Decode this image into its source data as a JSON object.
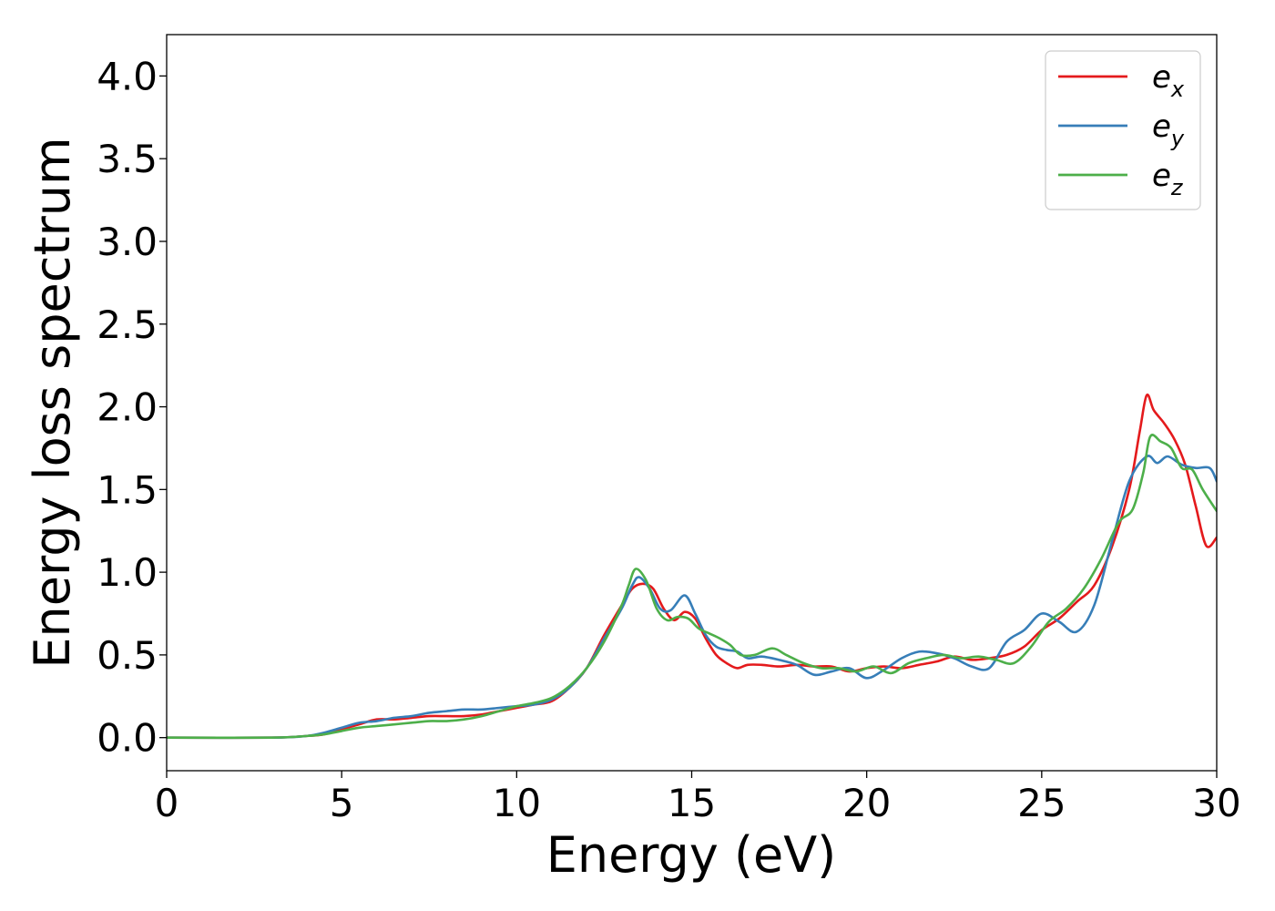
{
  "chart_data": {
    "type": "line",
    "xlabel": "Energy (eV)",
    "ylabel": "Energy loss spectrum",
    "xlim": [
      0,
      30
    ],
    "ylim": [
      -0.2,
      4.25
    ],
    "xticks": [
      0,
      5,
      10,
      15,
      20,
      25,
      30
    ],
    "yticks": [
      0.0,
      0.5,
      1.0,
      1.5,
      2.0,
      2.5,
      3.0,
      3.5,
      4.0
    ],
    "xtick_labels": [
      "0",
      "5",
      "10",
      "15",
      "20",
      "25",
      "30"
    ],
    "ytick_labels": [
      "0.0",
      "0.5",
      "1.0",
      "1.5",
      "2.0",
      "2.5",
      "3.0",
      "3.5",
      "4.0"
    ],
    "grid": false,
    "legend_position": "top-right",
    "series": [
      {
        "name": "e_x",
        "label_base": "e",
        "label_sub": "x",
        "color": "#e41a1c",
        "x": [
          0,
          3,
          4,
          4.5,
          5,
          5.5,
          6,
          6.5,
          7,
          7.5,
          8,
          8.5,
          9,
          9.5,
          10,
          10.5,
          11,
          11.5,
          12,
          12.5,
          13,
          13.3,
          13.6,
          13.9,
          14.2,
          14.5,
          14.8,
          15.1,
          15.4,
          15.7,
          16.0,
          16.3,
          16.6,
          17,
          17.5,
          18,
          18.5,
          19,
          19.5,
          20,
          20.5,
          21,
          21.5,
          22,
          22.5,
          23,
          23.5,
          24,
          24.5,
          25,
          25.5,
          26,
          26.5,
          27,
          27.5,
          27.8,
          28.0,
          28.2,
          28.5,
          28.8,
          29.1,
          29.4,
          29.7,
          30
        ],
        "y": [
          0.0,
          0.0,
          0.01,
          0.02,
          0.05,
          0.08,
          0.11,
          0.11,
          0.12,
          0.13,
          0.13,
          0.13,
          0.14,
          0.16,
          0.18,
          0.2,
          0.22,
          0.3,
          0.42,
          0.62,
          0.8,
          0.9,
          0.93,
          0.9,
          0.78,
          0.71,
          0.76,
          0.72,
          0.6,
          0.5,
          0.45,
          0.42,
          0.44,
          0.44,
          0.43,
          0.44,
          0.43,
          0.43,
          0.4,
          0.42,
          0.43,
          0.42,
          0.44,
          0.46,
          0.49,
          0.47,
          0.48,
          0.5,
          0.55,
          0.65,
          0.72,
          0.82,
          0.92,
          1.15,
          1.5,
          1.85,
          2.07,
          1.98,
          1.9,
          1.8,
          1.65,
          1.4,
          1.16,
          1.21
        ]
      },
      {
        "name": "e_y",
        "label_base": "e",
        "label_sub": "y",
        "color": "#377eb8",
        "x": [
          0,
          3,
          4,
          4.5,
          5,
          5.5,
          6,
          6.5,
          7,
          7.5,
          8,
          8.5,
          9,
          9.5,
          10,
          10.5,
          11,
          11.5,
          12,
          12.5,
          13,
          13.3,
          13.5,
          13.8,
          14.1,
          14.4,
          14.8,
          15.1,
          15.4,
          15.7,
          16.0,
          16.3,
          16.6,
          17,
          17.5,
          18,
          18.5,
          19,
          19.5,
          20,
          20.5,
          21,
          21.5,
          22,
          22.5,
          23,
          23.5,
          24,
          24.5,
          25,
          25.5,
          26,
          26.5,
          27,
          27.5,
          28,
          28.3,
          28.6,
          29,
          29.4,
          29.8,
          30
        ],
        "y": [
          0.0,
          0.0,
          0.01,
          0.03,
          0.06,
          0.09,
          0.1,
          0.12,
          0.13,
          0.15,
          0.16,
          0.17,
          0.17,
          0.18,
          0.19,
          0.2,
          0.23,
          0.3,
          0.42,
          0.6,
          0.78,
          0.92,
          0.97,
          0.9,
          0.78,
          0.77,
          0.86,
          0.75,
          0.62,
          0.55,
          0.53,
          0.52,
          0.48,
          0.49,
          0.47,
          0.44,
          0.38,
          0.4,
          0.42,
          0.36,
          0.41,
          0.48,
          0.52,
          0.51,
          0.48,
          0.43,
          0.42,
          0.58,
          0.65,
          0.75,
          0.7,
          0.64,
          0.8,
          1.18,
          1.55,
          1.7,
          1.66,
          1.7,
          1.65,
          1.63,
          1.63,
          1.55
        ]
      },
      {
        "name": "e_z",
        "label_base": "e",
        "label_sub": "z",
        "color": "#4daf4a",
        "x": [
          0,
          3,
          4,
          4.5,
          5,
          5.5,
          6,
          6.5,
          7,
          7.5,
          8,
          8.5,
          9,
          9.5,
          10,
          10.5,
          11,
          11.5,
          12,
          12.5,
          13,
          13.2,
          13.4,
          13.7,
          14.0,
          14.3,
          14.6,
          14.9,
          15.2,
          15.5,
          15.8,
          16.1,
          16.4,
          16.8,
          17.3,
          17.7,
          18.2,
          18.7,
          19.2,
          19.7,
          20.2,
          20.7,
          21.2,
          21.7,
          22.2,
          22.7,
          23.2,
          23.7,
          24.2,
          24.7,
          25.2,
          25.7,
          26.2,
          26.7,
          27.2,
          27.6,
          27.9,
          28.1,
          28.4,
          28.7,
          29.0,
          29.3,
          29.6,
          30
        ],
        "y": [
          0.0,
          0.0,
          0.01,
          0.02,
          0.04,
          0.06,
          0.07,
          0.08,
          0.09,
          0.1,
          0.1,
          0.11,
          0.13,
          0.16,
          0.19,
          0.21,
          0.24,
          0.31,
          0.42,
          0.58,
          0.8,
          0.92,
          1.02,
          0.95,
          0.78,
          0.71,
          0.73,
          0.72,
          0.66,
          0.63,
          0.6,
          0.56,
          0.5,
          0.5,
          0.54,
          0.5,
          0.45,
          0.42,
          0.42,
          0.4,
          0.43,
          0.39,
          0.45,
          0.48,
          0.5,
          0.48,
          0.49,
          0.47,
          0.45,
          0.55,
          0.7,
          0.78,
          0.9,
          1.08,
          1.3,
          1.38,
          1.6,
          1.82,
          1.79,
          1.75,
          1.63,
          1.62,
          1.5,
          1.37
        ]
      }
    ]
  }
}
